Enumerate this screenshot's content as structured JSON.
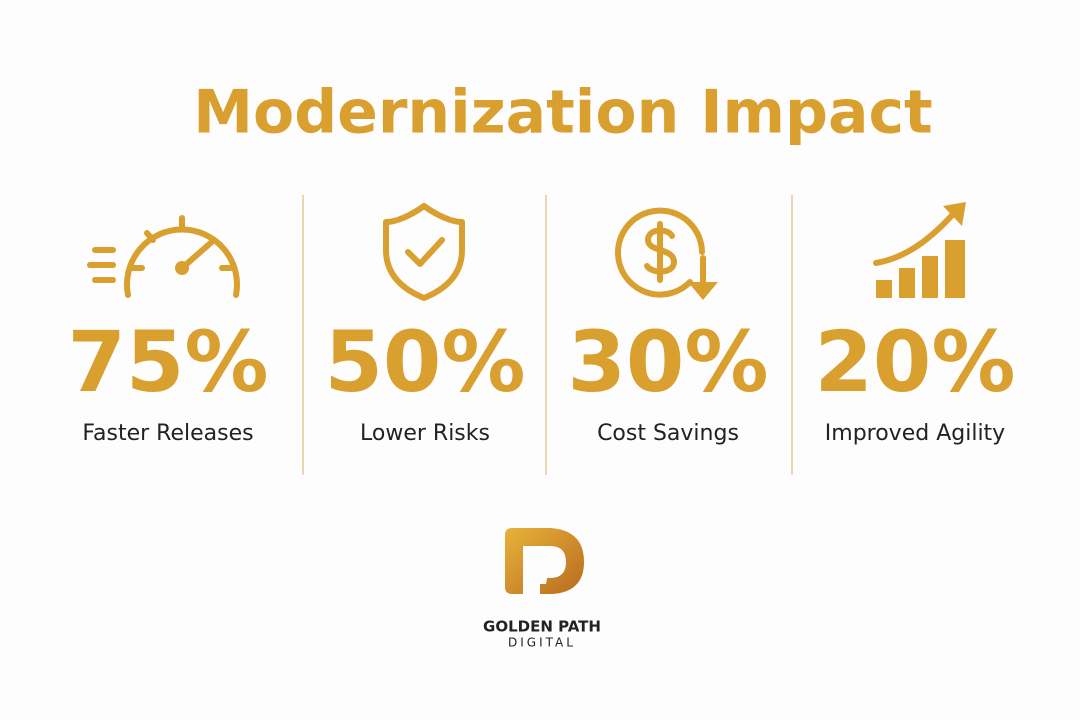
{
  "title": "Modernization Impact",
  "stats": [
    {
      "value": "75%",
      "label": "Faster Releases"
    },
    {
      "value": "50%",
      "label": "Lower Risks"
    },
    {
      "value": "30%",
      "label": "Cost Savings"
    },
    {
      "value": "20%",
      "label": "Improved Agility"
    }
  ],
  "logo": {
    "name": "GOLDEN PATH",
    "tagline": "DIGITAL"
  }
}
